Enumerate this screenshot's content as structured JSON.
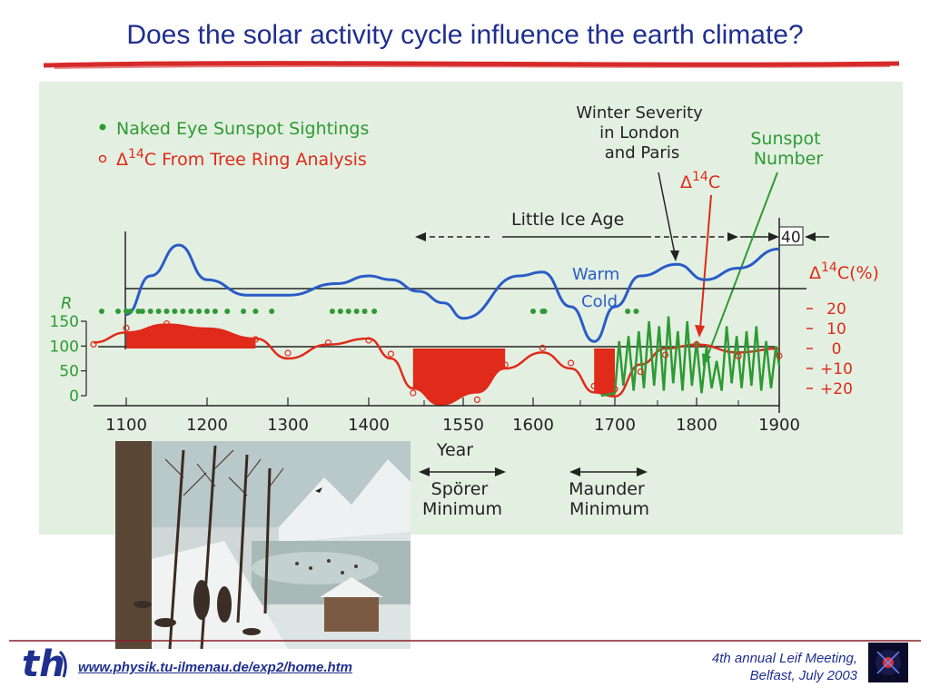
{
  "slide": {
    "title": "Does the solar activity cycle influence the earth climate?",
    "footer_url": "www.physik.tu-ilmenau.de/exp2/home.htm",
    "footer_meeting_line1": "4th annual Leif Meeting,",
    "footer_meeting_line2": "Belfast, July 2003",
    "logo_text": "th",
    "colors": {
      "title": "#1f2f8f",
      "rule": "#d62a2a",
      "panel": "#e3f0e1"
    }
  },
  "chart_data": {
    "type": "line",
    "x_tick_labels": [
      "1100",
      "1200",
      "1300",
      "1400",
      "1550",
      "1600",
      "1700",
      "1800",
      "1900"
    ],
    "x_tick_years": [
      1100,
      1200,
      1300,
      1400,
      1550,
      1600,
      1700,
      1800,
      1900
    ],
    "x_tick_extra": [
      "1500",
      "1650",
      "1750",
      "1850"
    ],
    "xlabel": "Year",
    "legend": {
      "sunspot_sightings": "Naked Eye Sunspot Sightings",
      "delta14c_prefix": "Δ",
      "delta14c_sup": "14",
      "delta14c_rest": "C From Tree Ring Analysis"
    },
    "left_axis": {
      "label": "R",
      "ticks": [
        "150",
        "100",
        "50",
        "0"
      ],
      "values": [
        150,
        100,
        50,
        0
      ]
    },
    "right_axis": {
      "label_prefix": "Δ",
      "label_sup": "14",
      "label_rest": "C(%)",
      "ticks": [
        "20",
        "10",
        "0",
        "+10",
        "+20"
      ],
      "top_marker": "40"
    },
    "annotations": {
      "winter_severity": [
        "Winter Severity",
        "in London",
        "and Paris"
      ],
      "sunspot_number": [
        "Sunspot",
        "Number"
      ],
      "delta14c_prefix": "Δ",
      "delta14c_sup": "14",
      "delta14c_rest": "C",
      "little_ice_age": "Little Ice Age",
      "warm": "Warm",
      "cold": "Cold",
      "sporer": [
        "Spörer",
        "Minimum"
      ],
      "maunder": [
        "Maunder",
        "Minimum"
      ]
    },
    "series": [
      {
        "name": "Winter Severity in London and Paris",
        "color": "#2a5cc8",
        "points": [
          [
            1100,
            0.1
          ],
          [
            1130,
            0.6
          ],
          [
            1165,
            1.0
          ],
          [
            1200,
            0.55
          ],
          [
            1250,
            0.35
          ],
          [
            1300,
            0.35
          ],
          [
            1360,
            0.5
          ],
          [
            1400,
            0.6
          ],
          [
            1440,
            0.55
          ],
          [
            1490,
            0.4
          ],
          [
            1525,
            0.25
          ],
          [
            1550,
            0.05
          ],
          [
            1590,
            0.6
          ],
          [
            1610,
            0.65
          ],
          [
            1640,
            0.2
          ],
          [
            1670,
            -0.25
          ],
          [
            1700,
            0.2
          ],
          [
            1730,
            0.6
          ],
          [
            1775,
            0.75
          ],
          [
            1810,
            0.55
          ],
          [
            1850,
            0.7
          ],
          [
            1900,
            0.95
          ]
        ]
      },
      {
        "name": "Δ14C",
        "color": "#e02a1a",
        "points": [
          [
            1060,
            -3
          ],
          [
            1100,
            -8
          ],
          [
            1150,
            -12
          ],
          [
            1200,
            -10
          ],
          [
            1260,
            -5
          ],
          [
            1300,
            5
          ],
          [
            1350,
            -2
          ],
          [
            1400,
            -5
          ],
          [
            1440,
            5
          ],
          [
            1480,
            20
          ],
          [
            1520,
            28
          ],
          [
            1560,
            22
          ],
          [
            1580,
            10
          ],
          [
            1610,
            2
          ],
          [
            1640,
            10
          ],
          [
            1670,
            22
          ],
          [
            1700,
            24
          ],
          [
            1730,
            8
          ],
          [
            1760,
            0
          ],
          [
            1800,
            -2
          ],
          [
            1850,
            2
          ],
          [
            1900,
            0
          ]
        ]
      },
      {
        "name": "Sunspot Number",
        "color": "#2e9a34",
        "years": [
          1680,
          1700,
          1705,
          1710,
          1716,
          1722,
          1728,
          1734,
          1740,
          1746,
          1752,
          1758,
          1764,
          1770,
          1776,
          1782,
          1788,
          1794,
          1800,
          1806,
          1812,
          1818,
          1824,
          1830,
          1836,
          1842,
          1848,
          1854,
          1860,
          1866,
          1872,
          1878,
          1884,
          1890,
          1896,
          1900
        ],
        "values": [
          0,
          5,
          110,
          20,
          120,
          10,
          130,
          15,
          150,
          20,
          140,
          10,
          160,
          25,
          130,
          10,
          150,
          20,
          110,
          5,
          100,
          15,
          70,
          10,
          140,
          25,
          120,
          15,
          130,
          20,
          140,
          10,
          110,
          15,
          100,
          60
        ]
      }
    ],
    "sunspot_sightings_years": [
      1070,
      1090,
      1100,
      1105,
      1115,
      1120,
      1130,
      1140,
      1150,
      1160,
      1170,
      1180,
      1190,
      1200,
      1210,
      1225,
      1245,
      1260,
      1280,
      1355,
      1365,
      1375,
      1385,
      1395,
      1410,
      1600,
      1610,
      1612,
      1715,
      1725
    ]
  }
}
